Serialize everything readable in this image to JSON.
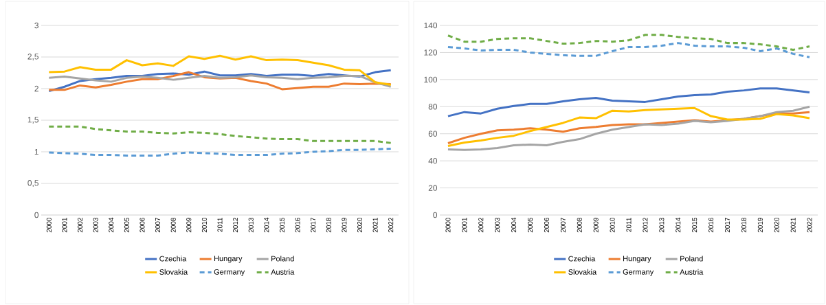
{
  "chart_data": [
    {
      "type": "line",
      "categories": [
        "2000",
        "2001",
        "2002",
        "2003",
        "2004",
        "2005",
        "2006",
        "2007",
        "2008",
        "2009",
        "2010",
        "2011",
        "2012",
        "2013",
        "2014",
        "2015",
        "2016",
        "2017",
        "2018",
        "2019",
        "2020",
        "2021",
        "2022"
      ],
      "ylim": [
        0,
        3
      ],
      "yticks": [
        0,
        {
          "value": 0.5,
          "label": "0,5"
        },
        1,
        {
          "value": 1.5,
          "label": "1,5"
        },
        2,
        {
          "value": 2.5,
          "label": "2,5"
        },
        3
      ],
      "grid": "y",
      "legend": "bottom",
      "marker": "none",
      "series": [
        {
          "name": "Czechia",
          "color": "#4472c4",
          "line_style": "solid",
          "values": [
            1.96,
            2.03,
            2.12,
            2.15,
            2.17,
            2.2,
            2.2,
            2.23,
            2.24,
            2.22,
            2.27,
            2.21,
            2.21,
            2.23,
            2.2,
            2.22,
            2.22,
            2.2,
            2.23,
            2.21,
            2.19,
            2.26,
            2.29
          ]
        },
        {
          "name": "Hungary",
          "color": "#ed7d31",
          "line_style": "solid",
          "values": [
            1.98,
            1.98,
            2.05,
            2.02,
            2.06,
            2.11,
            2.15,
            2.15,
            2.2,
            2.26,
            2.18,
            2.16,
            2.17,
            2.12,
            2.08,
            1.99,
            2.01,
            2.03,
            2.03,
            2.08,
            2.07,
            2.08,
            2.07
          ]
        },
        {
          "name": "Poland",
          "color": "#a5a5a5",
          "line_style": "solid",
          "values": [
            2.17,
            2.19,
            2.16,
            2.13,
            2.11,
            2.17,
            2.19,
            2.17,
            2.14,
            2.17,
            2.2,
            2.17,
            2.18,
            2.21,
            2.18,
            2.17,
            2.15,
            2.17,
            2.18,
            2.2,
            2.2,
            2.1,
            2.03
          ]
        },
        {
          "name": "Slovakia",
          "color": "#ffc000",
          "line_style": "solid",
          "values": [
            2.26,
            2.27,
            2.34,
            2.3,
            2.3,
            2.45,
            2.37,
            2.4,
            2.36,
            2.51,
            2.47,
            2.52,
            2.46,
            2.51,
            2.45,
            2.46,
            2.45,
            2.41,
            2.37,
            2.3,
            2.29,
            2.1,
            2.06
          ]
        },
        {
          "name": "Germany",
          "color": "#5b9bd5",
          "line_style": "dashed",
          "values": [
            0.99,
            0.98,
            0.97,
            0.95,
            0.95,
            0.94,
            0.94,
            0.94,
            0.97,
            0.99,
            0.98,
            0.97,
            0.95,
            0.95,
            0.95,
            0.97,
            0.98,
            1.0,
            1.01,
            1.03,
            1.03,
            1.04,
            1.05
          ]
        },
        {
          "name": "Austria",
          "color": "#70ad47",
          "line_style": "dashed",
          "values": [
            1.4,
            1.4,
            1.4,
            1.36,
            1.34,
            1.32,
            1.32,
            1.3,
            1.29,
            1.31,
            1.3,
            1.28,
            1.25,
            1.23,
            1.21,
            1.2,
            1.2,
            1.17,
            1.17,
            1.17,
            1.17,
            1.17,
            1.14
          ]
        }
      ]
    },
    {
      "type": "line",
      "categories": [
        "2000",
        "2001",
        "2002",
        "2003",
        "2004",
        "2005",
        "2006",
        "2007",
        "2008",
        "2009",
        "2010",
        "2011",
        "2012",
        "2013",
        "2014",
        "2015",
        "2016",
        "2017",
        "2018",
        "2019",
        "2020",
        "2021",
        "2022"
      ],
      "ylim": [
        0,
        140
      ],
      "yticks": [
        0,
        20,
        40,
        60,
        80,
        100,
        120,
        140
      ],
      "grid": "y",
      "legend": "bottom",
      "marker": "none",
      "series": [
        {
          "name": "Czechia",
          "color": "#4472c4",
          "line_style": "solid",
          "values": [
            73,
            76,
            75,
            78.5,
            80.5,
            82,
            82,
            84,
            85.5,
            86.5,
            84.5,
            84,
            83.5,
            85.5,
            87.5,
            88.5,
            89,
            91,
            92,
            93.5,
            93.5,
            92,
            90.5
          ]
        },
        {
          "name": "Hungary",
          "color": "#ed7d31",
          "line_style": "solid",
          "values": [
            53,
            57,
            60,
            62.5,
            63,
            64,
            63,
            61.5,
            64,
            65,
            66.5,
            67,
            67,
            68,
            69,
            70,
            69,
            70,
            71,
            73,
            75,
            75,
            76
          ]
        },
        {
          "name": "Poland",
          "color": "#a5a5a5",
          "line_style": "solid",
          "values": [
            48.5,
            48,
            48.5,
            49.5,
            51.5,
            52,
            51.5,
            54,
            56,
            60,
            63,
            65,
            67,
            66.5,
            67.5,
            69.5,
            68.5,
            69.5,
            71,
            73,
            76,
            77,
            80
          ]
        },
        {
          "name": "Slovakia",
          "color": "#ffc000",
          "line_style": "solid",
          "values": [
            51,
            53.5,
            55,
            57,
            58.5,
            62,
            65,
            68,
            72,
            71.5,
            77,
            76.5,
            77.5,
            78,
            78.5,
            79,
            73,
            70.5,
            70.5,
            71,
            74.5,
            73.5,
            71.5
          ]
        },
        {
          "name": "Germany",
          "color": "#5b9bd5",
          "line_style": "dashed",
          "values": [
            124,
            123,
            121.5,
            122,
            122,
            120,
            119,
            118,
            117.5,
            117.5,
            121,
            124,
            124,
            125,
            127,
            125,
            124.5,
            124.5,
            123.5,
            121,
            123,
            119,
            116.5
          ]
        },
        {
          "name": "Austria",
          "color": "#70ad47",
          "line_style": "dashed",
          "values": [
            132.5,
            128,
            128,
            130,
            130.5,
            130.5,
            128.5,
            126.5,
            127,
            128.5,
            128,
            129,
            133,
            133,
            131.5,
            130.5,
            130,
            127,
            127,
            126,
            124.5,
            122,
            124.5
          ]
        }
      ]
    }
  ]
}
